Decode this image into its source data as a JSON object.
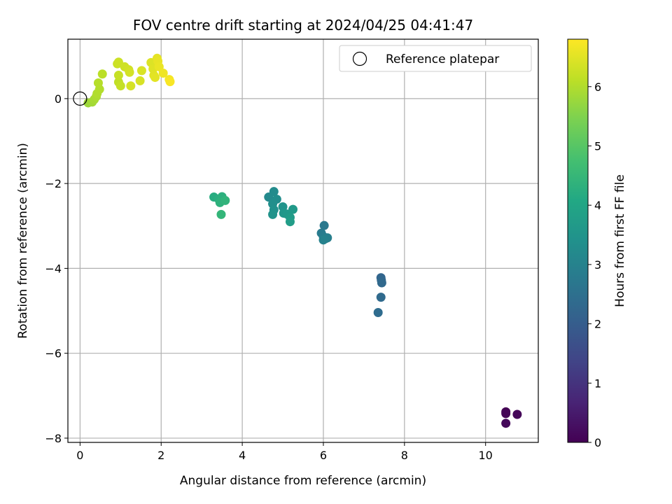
{
  "chart_data": {
    "type": "scatter",
    "title": "FOV centre drift starting at 2024/04/25 04:41:47",
    "xlabel": "Angular distance from reference (arcmin)",
    "ylabel": "Rotation from reference (arcmin)",
    "xlim": [
      -0.3,
      11.3
    ],
    "ylim": [
      -8.1,
      1.4
    ],
    "xticks": [
      0,
      2,
      4,
      6,
      8,
      10
    ],
    "xtick_labels": [
      "0",
      "2",
      "4",
      "6",
      "8",
      "10"
    ],
    "yticks": [
      0,
      -2,
      -4,
      -6,
      -8
    ],
    "ytick_labels": [
      "0",
      "−2",
      "−4",
      "−6",
      "−8"
    ],
    "grid": true,
    "legend": {
      "placement": "top-right",
      "entries": [
        "Reference platepar"
      ]
    },
    "reference_point": {
      "x": 0,
      "y": 0
    },
    "colorbar": {
      "label": "Hours from first FF file",
      "colormap": "viridis",
      "range": [
        0,
        6.8
      ],
      "ticks": [
        0,
        1,
        2,
        3,
        4,
        5,
        6
      ],
      "tick_labels": [
        "0",
        "1",
        "2",
        "3",
        "4",
        "5",
        "6"
      ]
    },
    "points": [
      {
        "x": 10.5,
        "y": -7.38,
        "h": 0.0
      },
      {
        "x": 10.5,
        "y": -7.42,
        "h": 0.05
      },
      {
        "x": 10.78,
        "y": -7.44,
        "h": 0.1
      },
      {
        "x": 10.5,
        "y": -7.65,
        "h": 0.15
      },
      {
        "x": 7.42,
        "y": -4.22,
        "h": 2.2
      },
      {
        "x": 7.43,
        "y": -4.28,
        "h": 2.25
      },
      {
        "x": 7.44,
        "y": -4.34,
        "h": 2.3
      },
      {
        "x": 7.42,
        "y": -4.68,
        "h": 2.35
      },
      {
        "x": 7.35,
        "y": -5.04,
        "h": 2.4
      },
      {
        "x": 6.02,
        "y": -2.99,
        "h": 2.75
      },
      {
        "x": 5.95,
        "y": -3.17,
        "h": 2.8
      },
      {
        "x": 6.0,
        "y": -3.25,
        "h": 2.85
      },
      {
        "x": 6.1,
        "y": -3.28,
        "h": 2.9
      },
      {
        "x": 6.05,
        "y": -3.3,
        "h": 2.95
      },
      {
        "x": 6.0,
        "y": -3.33,
        "h": 3.0
      },
      {
        "x": 4.65,
        "y": -2.32,
        "h": 3.2
      },
      {
        "x": 4.78,
        "y": -2.19,
        "h": 3.25
      },
      {
        "x": 4.85,
        "y": -2.37,
        "h": 3.3
      },
      {
        "x": 4.75,
        "y": -2.48,
        "h": 3.35
      },
      {
        "x": 4.78,
        "y": -2.62,
        "h": 3.4
      },
      {
        "x": 4.75,
        "y": -2.73,
        "h": 3.45
      },
      {
        "x": 5.0,
        "y": -2.55,
        "h": 3.5
      },
      {
        "x": 5.02,
        "y": -2.7,
        "h": 3.55
      },
      {
        "x": 5.1,
        "y": -2.72,
        "h": 3.6
      },
      {
        "x": 5.25,
        "y": -2.61,
        "h": 3.65
      },
      {
        "x": 5.18,
        "y": -2.8,
        "h": 3.7
      },
      {
        "x": 5.18,
        "y": -2.9,
        "h": 3.75
      },
      {
        "x": 3.3,
        "y": -2.32,
        "h": 4.2
      },
      {
        "x": 3.42,
        "y": -2.37,
        "h": 4.25
      },
      {
        "x": 3.5,
        "y": -2.31,
        "h": 4.3
      },
      {
        "x": 3.45,
        "y": -2.45,
        "h": 4.35
      },
      {
        "x": 3.58,
        "y": -2.4,
        "h": 4.4
      },
      {
        "x": 3.48,
        "y": -2.73,
        "h": 4.45
      },
      {
        "x": 0.2,
        "y": -0.1,
        "h": 5.8
      },
      {
        "x": 0.3,
        "y": -0.08,
        "h": 5.85
      },
      {
        "x": 0.35,
        "y": -0.02,
        "h": 5.9
      },
      {
        "x": 0.4,
        "y": 0.05,
        "h": 5.95
      },
      {
        "x": 0.42,
        "y": 0.12,
        "h": 6.0
      },
      {
        "x": 0.48,
        "y": 0.22,
        "h": 6.02
      },
      {
        "x": 0.45,
        "y": 0.37,
        "h": 6.05
      },
      {
        "x": 0.55,
        "y": 0.58,
        "h": 6.1
      },
      {
        "x": 0.95,
        "y": 0.39,
        "h": 6.15
      },
      {
        "x": 1.0,
        "y": 0.3,
        "h": 6.2
      },
      {
        "x": 0.95,
        "y": 0.55,
        "h": 6.22
      },
      {
        "x": 0.92,
        "y": 0.82,
        "h": 6.25
      },
      {
        "x": 0.95,
        "y": 0.86,
        "h": 6.28
      },
      {
        "x": 1.1,
        "y": 0.75,
        "h": 6.3
      },
      {
        "x": 1.2,
        "y": 0.68,
        "h": 6.33
      },
      {
        "x": 1.22,
        "y": 0.62,
        "h": 6.35
      },
      {
        "x": 1.25,
        "y": 0.3,
        "h": 6.38
      },
      {
        "x": 1.48,
        "y": 0.42,
        "h": 6.4
      },
      {
        "x": 1.52,
        "y": 0.66,
        "h": 6.42
      },
      {
        "x": 1.75,
        "y": 0.85,
        "h": 6.45
      },
      {
        "x": 1.8,
        "y": 0.7,
        "h": 6.48
      },
      {
        "x": 1.82,
        "y": 0.55,
        "h": 6.5
      },
      {
        "x": 1.85,
        "y": 0.5,
        "h": 6.52
      },
      {
        "x": 1.9,
        "y": 0.95,
        "h": 6.55
      },
      {
        "x": 1.92,
        "y": 0.88,
        "h": 6.58
      },
      {
        "x": 1.95,
        "y": 0.75,
        "h": 6.6
      },
      {
        "x": 2.05,
        "y": 0.6,
        "h": 6.65
      },
      {
        "x": 2.2,
        "y": 0.45,
        "h": 6.7
      },
      {
        "x": 2.22,
        "y": 0.4,
        "h": 6.75
      }
    ]
  }
}
